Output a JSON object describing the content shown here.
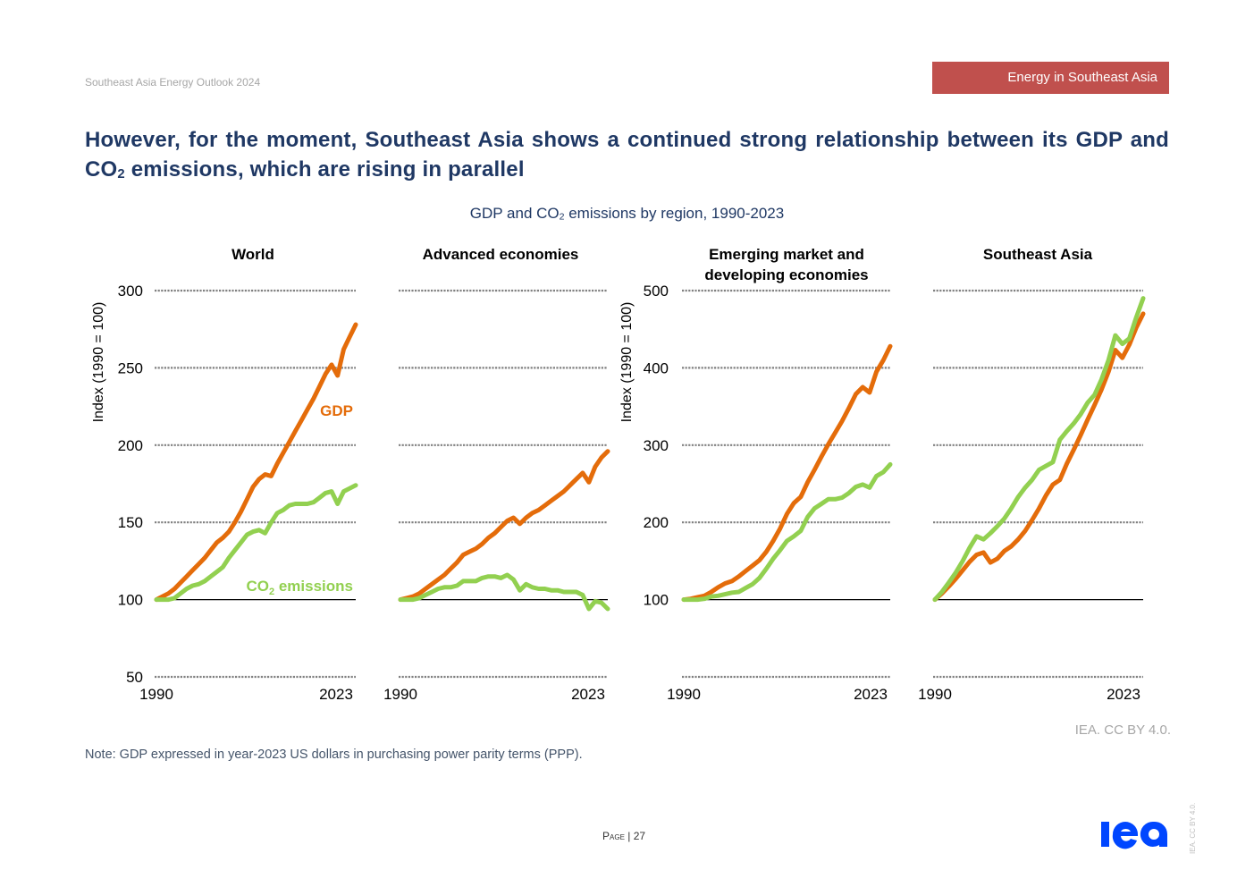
{
  "header": {
    "report_name": "Southeast Asia Energy Outlook 2024",
    "section_tag": "Energy in Southeast Asia"
  },
  "title": {
    "part1": "However, for the moment, Southeast Asia shows a continued strong relationship between its GDP and CO",
    "sub": "2",
    "part2": " emissions, which are rising in parallel"
  },
  "subtitle": {
    "part1": "GDP and CO",
    "sub": "2",
    "part2": " emissions by region, 1990-2023"
  },
  "colors": {
    "gdp": "#e46c0a",
    "co2": "#92d050",
    "gridline": "#808080",
    "title": "#1f3864",
    "section_tag": "#c0504d",
    "logo": "#0046ff"
  },
  "chart_data": [
    {
      "type": "line",
      "title": "World",
      "ylabel": "Index (1990 = 100)",
      "ylim": [
        50,
        300
      ],
      "yticks": [
        50,
        100,
        150,
        200,
        250,
        300
      ],
      "ytick_labels": [
        "50",
        "100",
        "150",
        "200",
        "250",
        "300"
      ],
      "xlim": [
        1990,
        2023
      ],
      "xtick_labels": [
        "1990",
        "2023"
      ],
      "grid": true,
      "baseline": 100,
      "legend": [
        {
          "name": "GDP",
          "placement": "inline-right"
        },
        {
          "name": "CO2 emissions",
          "placement": "inline-bottom-right"
        }
      ],
      "series": [
        {
          "name": "GDP",
          "x": [
            1990,
            1991,
            1992,
            1993,
            1994,
            1995,
            1996,
            1997,
            1998,
            1999,
            2000,
            2001,
            2002,
            2003,
            2004,
            2005,
            2006,
            2007,
            2008,
            2009,
            2010,
            2011,
            2012,
            2013,
            2014,
            2015,
            2016,
            2017,
            2018,
            2019,
            2020,
            2021,
            2022,
            2023
          ],
          "values": [
            100,
            102,
            104,
            107,
            111,
            115,
            119,
            123,
            127,
            132,
            137,
            140,
            144,
            150,
            157,
            165,
            173,
            178,
            181,
            180,
            188,
            195,
            202,
            209,
            216,
            223,
            230,
            238,
            246,
            252,
            245,
            262,
            270,
            278
          ]
        },
        {
          "name": "CO2 emissions",
          "x": [
            1990,
            1991,
            1992,
            1993,
            1994,
            1995,
            1996,
            1997,
            1998,
            1999,
            2000,
            2001,
            2002,
            2003,
            2004,
            2005,
            2006,
            2007,
            2008,
            2009,
            2010,
            2011,
            2012,
            2013,
            2014,
            2015,
            2016,
            2017,
            2018,
            2019,
            2020,
            2021,
            2022,
            2023
          ],
          "values": [
            100,
            100,
            100,
            101,
            104,
            107,
            109,
            110,
            112,
            115,
            118,
            121,
            127,
            132,
            137,
            142,
            144,
            145,
            143,
            150,
            156,
            158,
            161,
            162,
            162,
            162,
            163,
            166,
            169,
            170,
            162,
            170,
            172,
            174
          ]
        }
      ]
    },
    {
      "type": "line",
      "title": "Advanced economies",
      "ylabel": "",
      "ylim": [
        50,
        300
      ],
      "yticks": [
        50,
        100,
        150,
        200,
        250,
        300
      ],
      "ytick_labels": [],
      "xlim": [
        1990,
        2023
      ],
      "xtick_labels": [
        "1990",
        "2023"
      ],
      "grid": true,
      "baseline": 100,
      "series": [
        {
          "name": "GDP",
          "x": [
            1990,
            1991,
            1992,
            1993,
            1994,
            1995,
            1996,
            1997,
            1998,
            1999,
            2000,
            2001,
            2002,
            2003,
            2004,
            2005,
            2006,
            2007,
            2008,
            2009,
            2010,
            2011,
            2012,
            2013,
            2014,
            2015,
            2016,
            2017,
            2018,
            2019,
            2020,
            2021,
            2022,
            2023
          ],
          "values": [
            100,
            101,
            102,
            104,
            107,
            110,
            113,
            116,
            120,
            124,
            129,
            131,
            133,
            136,
            140,
            143,
            147,
            151,
            153,
            149,
            153,
            156,
            158,
            161,
            164,
            167,
            170,
            174,
            178,
            182,
            176,
            186,
            192,
            196
          ]
        },
        {
          "name": "CO2 emissions",
          "x": [
            1990,
            1991,
            1992,
            1993,
            1994,
            1995,
            1996,
            1997,
            1998,
            1999,
            2000,
            2001,
            2002,
            2003,
            2004,
            2005,
            2006,
            2007,
            2008,
            2009,
            2010,
            2011,
            2012,
            2013,
            2014,
            2015,
            2016,
            2017,
            2018,
            2019,
            2020,
            2021,
            2022,
            2023
          ],
          "values": [
            100,
            100,
            100,
            101,
            103,
            105,
            107,
            108,
            108,
            109,
            112,
            112,
            112,
            114,
            115,
            115,
            114,
            116,
            113,
            106,
            110,
            108,
            107,
            107,
            106,
            106,
            105,
            105,
            105,
            103,
            94,
            99,
            98,
            94
          ]
        }
      ]
    },
    {
      "type": "line",
      "title": "Emerging market and developing economies",
      "ylabel": "Index (1990 = 100)",
      "ylim": [
        0,
        500
      ],
      "yticks": [
        0,
        100,
        200,
        300,
        400,
        500
      ],
      "ytick_labels": [
        "",
        "100",
        "200",
        "300",
        "400",
        "500"
      ],
      "xlim": [
        1990,
        2023
      ],
      "xtick_labels": [
        "1990",
        "2023"
      ],
      "grid": true,
      "baseline": 100,
      "series": [
        {
          "name": "GDP",
          "x": [
            1990,
            1991,
            1992,
            1993,
            1994,
            1995,
            1996,
            1997,
            1998,
            1999,
            2000,
            2001,
            2002,
            2003,
            2004,
            2005,
            2006,
            2007,
            2008,
            2009,
            2010,
            2011,
            2012,
            2013,
            2014,
            2015,
            2016,
            2017,
            2018,
            2019,
            2020,
            2021,
            2022,
            2023
          ],
          "values": [
            100,
            101,
            103,
            105,
            110,
            116,
            121,
            124,
            130,
            137,
            144,
            151,
            162,
            176,
            192,
            211,
            225,
            233,
            252,
            268,
            285,
            301,
            316,
            331,
            348,
            366,
            375,
            368,
            395,
            410,
            428,
            null,
            null,
            null
          ]
        },
        {
          "name": "CO2 emissions",
          "x": [
            1990,
            1991,
            1992,
            1993,
            1994,
            1995,
            1996,
            1997,
            1998,
            1999,
            2000,
            2001,
            2002,
            2003,
            2004,
            2005,
            2006,
            2007,
            2008,
            2009,
            2010,
            2011,
            2012,
            2013,
            2014,
            2015,
            2016,
            2017,
            2018,
            2019,
            2020,
            2021,
            2022,
            2023
          ],
          "values": [
            100,
            100,
            100,
            101,
            104,
            105,
            107,
            109,
            110,
            115,
            120,
            128,
            140,
            153,
            164,
            176,
            182,
            189,
            207,
            218,
            224,
            230,
            230,
            232,
            238,
            246,
            249,
            245,
            260,
            265,
            275,
            null,
            null,
            null
          ]
        }
      ]
    },
    {
      "type": "line",
      "title": "Southeast Asia",
      "ylabel": "",
      "ylim": [
        0,
        500
      ],
      "yticks": [
        0,
        100,
        200,
        300,
        400,
        500
      ],
      "ytick_labels": [],
      "xlim": [
        1990,
        2023
      ],
      "xtick_labels": [
        "1990",
        "2023"
      ],
      "grid": true,
      "baseline": 100,
      "series": [
        {
          "name": "GDP",
          "x": [
            1990,
            1991,
            1992,
            1993,
            1994,
            1995,
            1996,
            1997,
            1998,
            1999,
            2000,
            2001,
            2002,
            2003,
            2004,
            2005,
            2006,
            2007,
            2008,
            2009,
            2010,
            2011,
            2012,
            2013,
            2014,
            2015,
            2016,
            2017,
            2018,
            2019,
            2020,
            2021,
            2022,
            2023
          ],
          "values": [
            100,
            108,
            117,
            127,
            138,
            149,
            158,
            161,
            148,
            153,
            163,
            169,
            178,
            189,
            203,
            218,
            235,
            249,
            255,
            276,
            294,
            313,
            333,
            352,
            372,
            395,
            423,
            413,
            430,
            452,
            470,
            null,
            null,
            null
          ]
        },
        {
          "name": "CO2 emissions",
          "x": [
            1990,
            1991,
            1992,
            1993,
            1994,
            1995,
            1996,
            1997,
            1998,
            1999,
            2000,
            2001,
            2002,
            2003,
            2004,
            2005,
            2006,
            2007,
            2008,
            2009,
            2010,
            2011,
            2012,
            2013,
            2014,
            2015,
            2016,
            2017,
            2018,
            2019,
            2020,
            2021,
            2022,
            2023
          ],
          "values": [
            100,
            110,
            122,
            135,
            150,
            167,
            182,
            178,
            186,
            195,
            205,
            218,
            233,
            245,
            255,
            268,
            273,
            278,
            307,
            318,
            328,
            340,
            355,
            365,
            385,
            410,
            442,
            431,
            438,
            465,
            490,
            null,
            null,
            null
          ]
        }
      ]
    }
  ],
  "labels": {
    "gdp": "GDP",
    "co2_prefix": "CO",
    "co2_sub": "2",
    "co2_suffix": " emissions"
  },
  "source": "IEA. CC BY 4.0.",
  "note": "Note: GDP expressed in year-2023 US dollars in purchasing power parity terms (PPP).",
  "footer": {
    "page_word": "Page",
    "page_sep": " | ",
    "page_number": "27",
    "logo_text": "iea",
    "vertical_credit": "IEA. CC BY 4.0."
  }
}
